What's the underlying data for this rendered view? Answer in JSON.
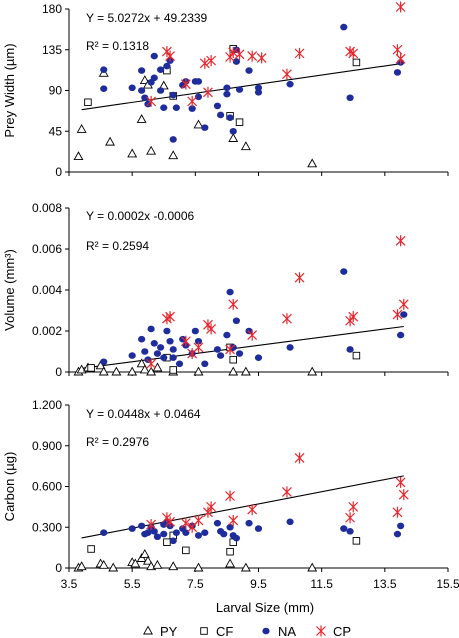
{
  "chart_data": [
    {
      "type": "scatter",
      "ylabel": "Prey Width (µm)",
      "ylim": [
        0,
        180
      ],
      "yticks": [
        "0",
        "45",
        "90",
        "135",
        "180"
      ],
      "xlim": [
        3.5,
        15.5
      ],
      "equation": "Y = 5.0272x + 49.2339",
      "r2": "R² = 0.1318",
      "trendline": {
        "slope": 5.0272,
        "intercept": 49.2339,
        "x_range": [
          3.9,
          14.1
        ]
      },
      "series": [
        {
          "name": "PY",
          "points": [
            [
              3.8,
              17
            ],
            [
              3.9,
              47
            ],
            [
              4.6,
              109
            ],
            [
              4.8,
              33
            ],
            [
              5.5,
              20
            ],
            [
              5.8,
              58
            ],
            [
              5.9,
              101
            ],
            [
              6.1,
              23
            ],
            [
              6.8,
              18
            ],
            [
              7.6,
              52
            ],
            [
              8.7,
              37
            ],
            [
              9.1,
              28
            ],
            [
              11.2,
              9
            ],
            [
              6.0,
              96
            ],
            [
              6.5,
              95
            ]
          ]
        },
        {
          "name": "CF",
          "points": [
            [
              4.1,
              77
            ],
            [
              6.6,
              112
            ],
            [
              6.8,
              84
            ],
            [
              8.6,
              62
            ],
            [
              8.7,
              136
            ],
            [
              12.6,
              121
            ],
            [
              8.9,
              55
            ]
          ]
        },
        {
          "name": "NA",
          "points": [
            [
              4.6,
              113
            ],
            [
              4.6,
              92
            ],
            [
              5.5,
              93
            ],
            [
              5.8,
              112
            ],
            [
              5.8,
              90
            ],
            [
              5.9,
              82
            ],
            [
              6.0,
              75
            ],
            [
              6.2,
              128
            ],
            [
              6.1,
              99
            ],
            [
              6.2,
              104
            ],
            [
              6.4,
              113
            ],
            [
              6.5,
              71
            ],
            [
              6.4,
              90
            ],
            [
              6.6,
              117
            ],
            [
              6.7,
              123
            ],
            [
              6.8,
              85
            ],
            [
              6.8,
              36
            ],
            [
              6.9,
              71
            ],
            [
              7.1,
              96
            ],
            [
              7.2,
              100
            ],
            [
              7.5,
              100
            ],
            [
              7.6,
              100
            ],
            [
              7.4,
              70
            ],
            [
              7.6,
              83
            ],
            [
              7.8,
              49
            ],
            [
              8.2,
              73
            ],
            [
              8.3,
              63
            ],
            [
              8.5,
              93
            ],
            [
              8.5,
              86
            ],
            [
              8.6,
              60
            ],
            [
              8.7,
              45
            ],
            [
              8.8,
              122
            ],
            [
              8.9,
              91
            ],
            [
              8.8,
              135
            ],
            [
              9.2,
              112
            ],
            [
              9.5,
              88
            ],
            [
              9.5,
              93
            ],
            [
              10.5,
              97
            ],
            [
              12.2,
              160
            ],
            [
              12.4,
              82
            ],
            [
              14.0,
              121
            ],
            [
              13.9,
              110
            ]
          ]
        },
        {
          "name": "CP",
          "points": [
            [
              6.6,
              133
            ],
            [
              6.7,
              128
            ],
            [
              6.1,
              78
            ],
            [
              7.2,
              97
            ],
            [
              7.4,
              78
            ],
            [
              7.9,
              88
            ],
            [
              8.0,
              123
            ],
            [
              7.8,
              120
            ],
            [
              8.6,
              127
            ],
            [
              8.7,
              132
            ],
            [
              8.9,
              130
            ],
            [
              9.3,
              128
            ],
            [
              9.6,
              126
            ],
            [
              10.4,
              108
            ],
            [
              10.8,
              131
            ],
            [
              12.4,
              133
            ],
            [
              12.5,
              131
            ],
            [
              13.9,
              135
            ],
            [
              14.0,
              187
            ],
            [
              14.0,
              125
            ]
          ]
        }
      ]
    },
    {
      "type": "scatter",
      "ylabel": "Volume (mm³)",
      "ylim": [
        0,
        0.008
      ],
      "yticks": [
        "0",
        "0.002",
        "0.004",
        "0.006",
        "0.008"
      ],
      "xlim": [
        3.5,
        15.5
      ],
      "equation": "Y = 0.0002x -0.0006",
      "r2": "R² = 0.2594",
      "trendline": {
        "slope": 0.0002,
        "intercept": -0.0006,
        "x_range": [
          3.9,
          14.1
        ]
      },
      "series": [
        {
          "name": "PY",
          "points": [
            [
              3.8,
              0
            ],
            [
              3.9,
              0.0001
            ],
            [
              4.1,
              0.0002
            ],
            [
              4.5,
              0.0003
            ],
            [
              4.6,
              0
            ],
            [
              5.0,
              0
            ],
            [
              5.5,
              0
            ],
            [
              5.8,
              0.0004
            ],
            [
              5.9,
              0.0001
            ],
            [
              6.1,
              0
            ],
            [
              6.3,
              0.0002
            ],
            [
              6.8,
              0
            ],
            [
              7.6,
              0
            ],
            [
              8.7,
              0
            ],
            [
              9.1,
              0
            ],
            [
              11.2,
              0
            ]
          ]
        },
        {
          "name": "CF",
          "points": [
            [
              4.2,
              0.0002
            ],
            [
              6.6,
              0.0007
            ],
            [
              6.8,
              0.0001
            ],
            [
              8.6,
              0.0012
            ],
            [
              8.7,
              0.0006
            ],
            [
              12.6,
              0.0008
            ]
          ]
        },
        {
          "name": "NA",
          "points": [
            [
              4.6,
              0.0005
            ],
            [
              5.5,
              0.0008
            ],
            [
              5.8,
              0.0016
            ],
            [
              5.9,
              0.001
            ],
            [
              6.0,
              0.0006
            ],
            [
              6.1,
              0.0021
            ],
            [
              6.2,
              0.0014
            ],
            [
              6.3,
              0.0009
            ],
            [
              6.5,
              0.0007
            ],
            [
              6.4,
              0.0012
            ],
            [
              6.6,
              0.002
            ],
            [
              6.7,
              0.0015
            ],
            [
              6.8,
              0.0011
            ],
            [
              6.8,
              0.0007
            ],
            [
              7.0,
              0.0004
            ],
            [
              7.1,
              0.0016
            ],
            [
              7.2,
              0.0013
            ],
            [
              7.4,
              0.0009
            ],
            [
              7.5,
              0.002
            ],
            [
              7.6,
              0.0015
            ],
            [
              7.8,
              0.0004
            ],
            [
              8.2,
              0.0011
            ],
            [
              8.3,
              0.0008
            ],
            [
              8.5,
              0.0018
            ],
            [
              8.6,
              0.0039
            ],
            [
              8.7,
              0.0012
            ],
            [
              8.8,
              0.0025
            ],
            [
              8.9,
              0.0009
            ],
            [
              9.2,
              0.002
            ],
            [
              9.5,
              0.0007
            ],
            [
              10.5,
              0.0012
            ],
            [
              12.2,
              0.0049
            ],
            [
              12.4,
              0.0011
            ],
            [
              14.0,
              0.0018
            ],
            [
              14.1,
              0.0028
            ]
          ]
        },
        {
          "name": "CP",
          "points": [
            [
              6.6,
              0.0026
            ],
            [
              6.7,
              0.0027
            ],
            [
              6.1,
              0.0004
            ],
            [
              7.2,
              0.0015
            ],
            [
              7.4,
              0.0009
            ],
            [
              7.6,
              0.0012
            ],
            [
              7.9,
              0.0023
            ],
            [
              8.0,
              0.0021
            ],
            [
              8.6,
              0.0011
            ],
            [
              8.7,
              0.0033
            ],
            [
              9.3,
              0.0018
            ],
            [
              10.4,
              0.0026
            ],
            [
              10.8,
              0.0046
            ],
            [
              12.4,
              0.0025
            ],
            [
              12.5,
              0.0027
            ],
            [
              13.9,
              0.0028
            ],
            [
              14.0,
              0.0064
            ],
            [
              14.1,
              0.0033
            ]
          ]
        }
      ]
    },
    {
      "type": "scatter",
      "ylabel": "Carbon (µg)",
      "xlabel": "Larval Size (mm)",
      "ylim": [
        0,
        1.2
      ],
      "yticks": [
        "0",
        "0.300",
        "0.600",
        "0.900",
        "1.200"
      ],
      "xlim": [
        3.5,
        15.5
      ],
      "xticks": [
        "3.5",
        "5.5",
        "7.5",
        "9.5",
        "11.5",
        "13.5",
        "15.5"
      ],
      "equation": "Y = 0.0448x + 0.0464",
      "r2": "R² = 0.2976",
      "trendline": {
        "slope": 0.0448,
        "intercept": 0.0464,
        "x_range": [
          3.9,
          14.1
        ]
      },
      "series": [
        {
          "name": "PY",
          "points": [
            [
              3.8,
              0
            ],
            [
              3.9,
              0.01
            ],
            [
              4.5,
              0.03
            ],
            [
              4.6,
              0.02
            ],
            [
              4.9,
              0
            ],
            [
              5.5,
              0.04
            ],
            [
              5.6,
              0.03
            ],
            [
              5.8,
              0.07
            ],
            [
              5.9,
              0.1
            ],
            [
              6.0,
              0.05
            ],
            [
              6.1,
              0.01
            ],
            [
              6.3,
              0.02
            ],
            [
              6.8,
              0.01
            ],
            [
              7.6,
              0
            ],
            [
              8.6,
              0.03
            ],
            [
              9.1,
              0
            ],
            [
              11.2,
              0
            ]
          ]
        },
        {
          "name": "CF",
          "points": [
            [
              4.2,
              0.14
            ],
            [
              6.6,
              0.19
            ],
            [
              6.8,
              0.24
            ],
            [
              7.2,
              0.13
            ],
            [
              8.6,
              0.12
            ],
            [
              8.7,
              0.19
            ],
            [
              12.6,
              0.2
            ]
          ]
        },
        {
          "name": "NA",
          "points": [
            [
              4.6,
              0.26
            ],
            [
              5.5,
              0.29
            ],
            [
              5.8,
              0.31
            ],
            [
              5.9,
              0.25
            ],
            [
              6.0,
              0.26
            ],
            [
              6.1,
              0.3
            ],
            [
              6.2,
              0.27
            ],
            [
              6.3,
              0.23
            ],
            [
              6.5,
              0.25
            ],
            [
              6.5,
              0.32
            ],
            [
              6.6,
              0.34
            ],
            [
              6.7,
              0.31
            ],
            [
              6.8,
              0.2
            ],
            [
              6.9,
              0.26
            ],
            [
              7.1,
              0.29
            ],
            [
              7.2,
              0.26
            ],
            [
              7.4,
              0.31
            ],
            [
              7.6,
              0.24
            ],
            [
              7.8,
              0.26
            ],
            [
              8.2,
              0.33
            ],
            [
              8.3,
              0.27
            ],
            [
              8.4,
              0.25
            ],
            [
              8.6,
              0.3
            ],
            [
              8.7,
              0.24
            ],
            [
              8.8,
              0.22
            ],
            [
              9.2,
              0.33
            ],
            [
              9.5,
              0.29
            ],
            [
              10.5,
              0.34
            ],
            [
              12.2,
              0.29
            ],
            [
              12.4,
              0.27
            ],
            [
              13.9,
              0.25
            ],
            [
              14.0,
              0.31
            ]
          ]
        },
        {
          "name": "CP",
          "points": [
            [
              6.1,
              0.32
            ],
            [
              6.6,
              0.37
            ],
            [
              6.7,
              0.34
            ],
            [
              7.2,
              0.33
            ],
            [
              7.4,
              0.3
            ],
            [
              7.6,
              0.35
            ],
            [
              7.9,
              0.41
            ],
            [
              8.0,
              0.45
            ],
            [
              8.6,
              0.53
            ],
            [
              8.7,
              0.35
            ],
            [
              9.3,
              0.43
            ],
            [
              10.4,
              0.56
            ],
            [
              10.8,
              0.81
            ],
            [
              12.4,
              0.37
            ],
            [
              12.5,
              0.45
            ],
            [
              13.9,
              0.41
            ],
            [
              14.0,
              0.63
            ],
            [
              14.1,
              0.54
            ]
          ]
        }
      ]
    }
  ],
  "legend": [
    {
      "name": "PY",
      "marker": "triangle"
    },
    {
      "name": "CF",
      "marker": "square"
    },
    {
      "name": "NA",
      "marker": "circle"
    },
    {
      "name": "CP",
      "marker": "asterisk"
    }
  ],
  "colors": {
    "NA": "#1f2d9c",
    "CP": "#e8262d",
    "PY": "#000000",
    "CF": "#000000",
    "axis": "#000000"
  }
}
